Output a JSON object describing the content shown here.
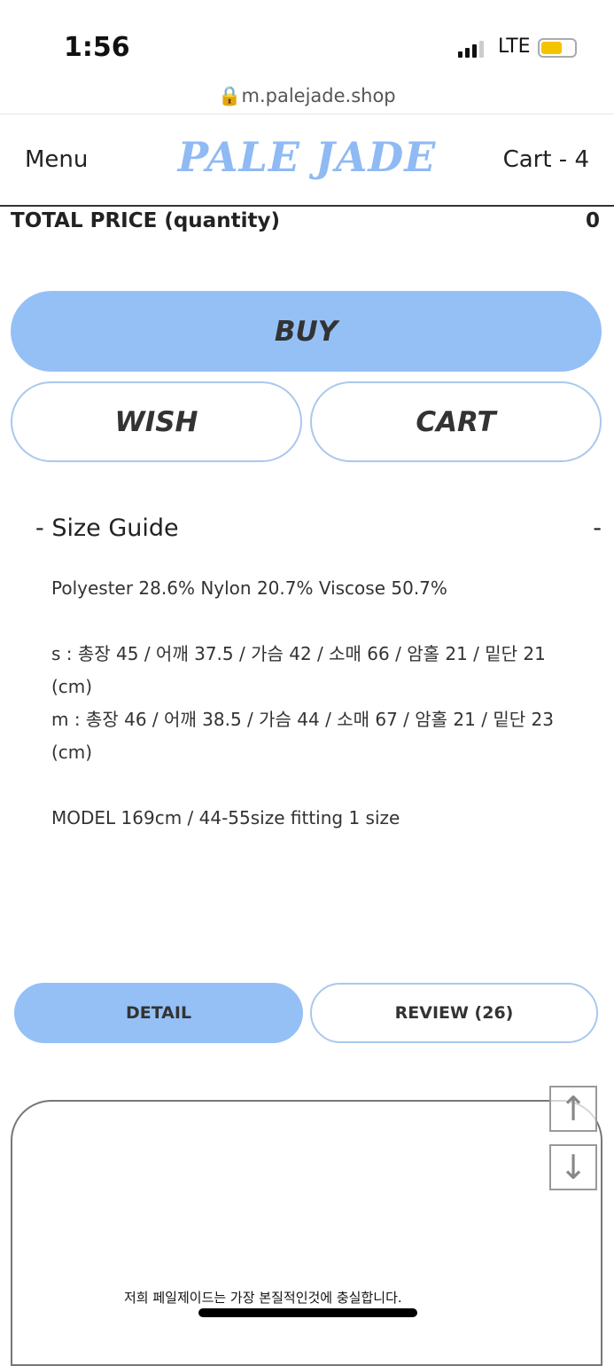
{
  "status": {
    "time": "1:56",
    "network": "LTE",
    "battery_color": "#f5c400"
  },
  "browser": {
    "url": "m.palejade.shop"
  },
  "header": {
    "menu": "Menu",
    "logo": "PALE JADE",
    "cart": "Cart - 4"
  },
  "total": {
    "label": "TOTAL PRICE (quantity)",
    "value": "0"
  },
  "actions": {
    "buy": "BUY",
    "wish": "WISH",
    "cart": "CART"
  },
  "size_guide": {
    "title": "- Size Guide",
    "toggle": "-",
    "lines": [
      "Polyester 28.6% Nylon 20.7% Viscose 50.7%",
      "s : 총장 45 / 어깨 37.5 / 가슴 42 / 소매 66 / 암홀 21 / 밑단 21 (cm)",
      "m : 총장 46 / 어깨 38.5 / 가슴 44 / 소매 67 / 암홀 21 / 밑단 23 (cm)",
      "MODEL 169cm / 44-55size fitting 1 size"
    ]
  },
  "tabs": {
    "detail": "DETAIL",
    "review": "REVIEW (26)"
  },
  "detail_image": {
    "text": "저희 페일제이드는 가장 본질적인것에 충실합니다."
  },
  "accent": "#95c0f6"
}
